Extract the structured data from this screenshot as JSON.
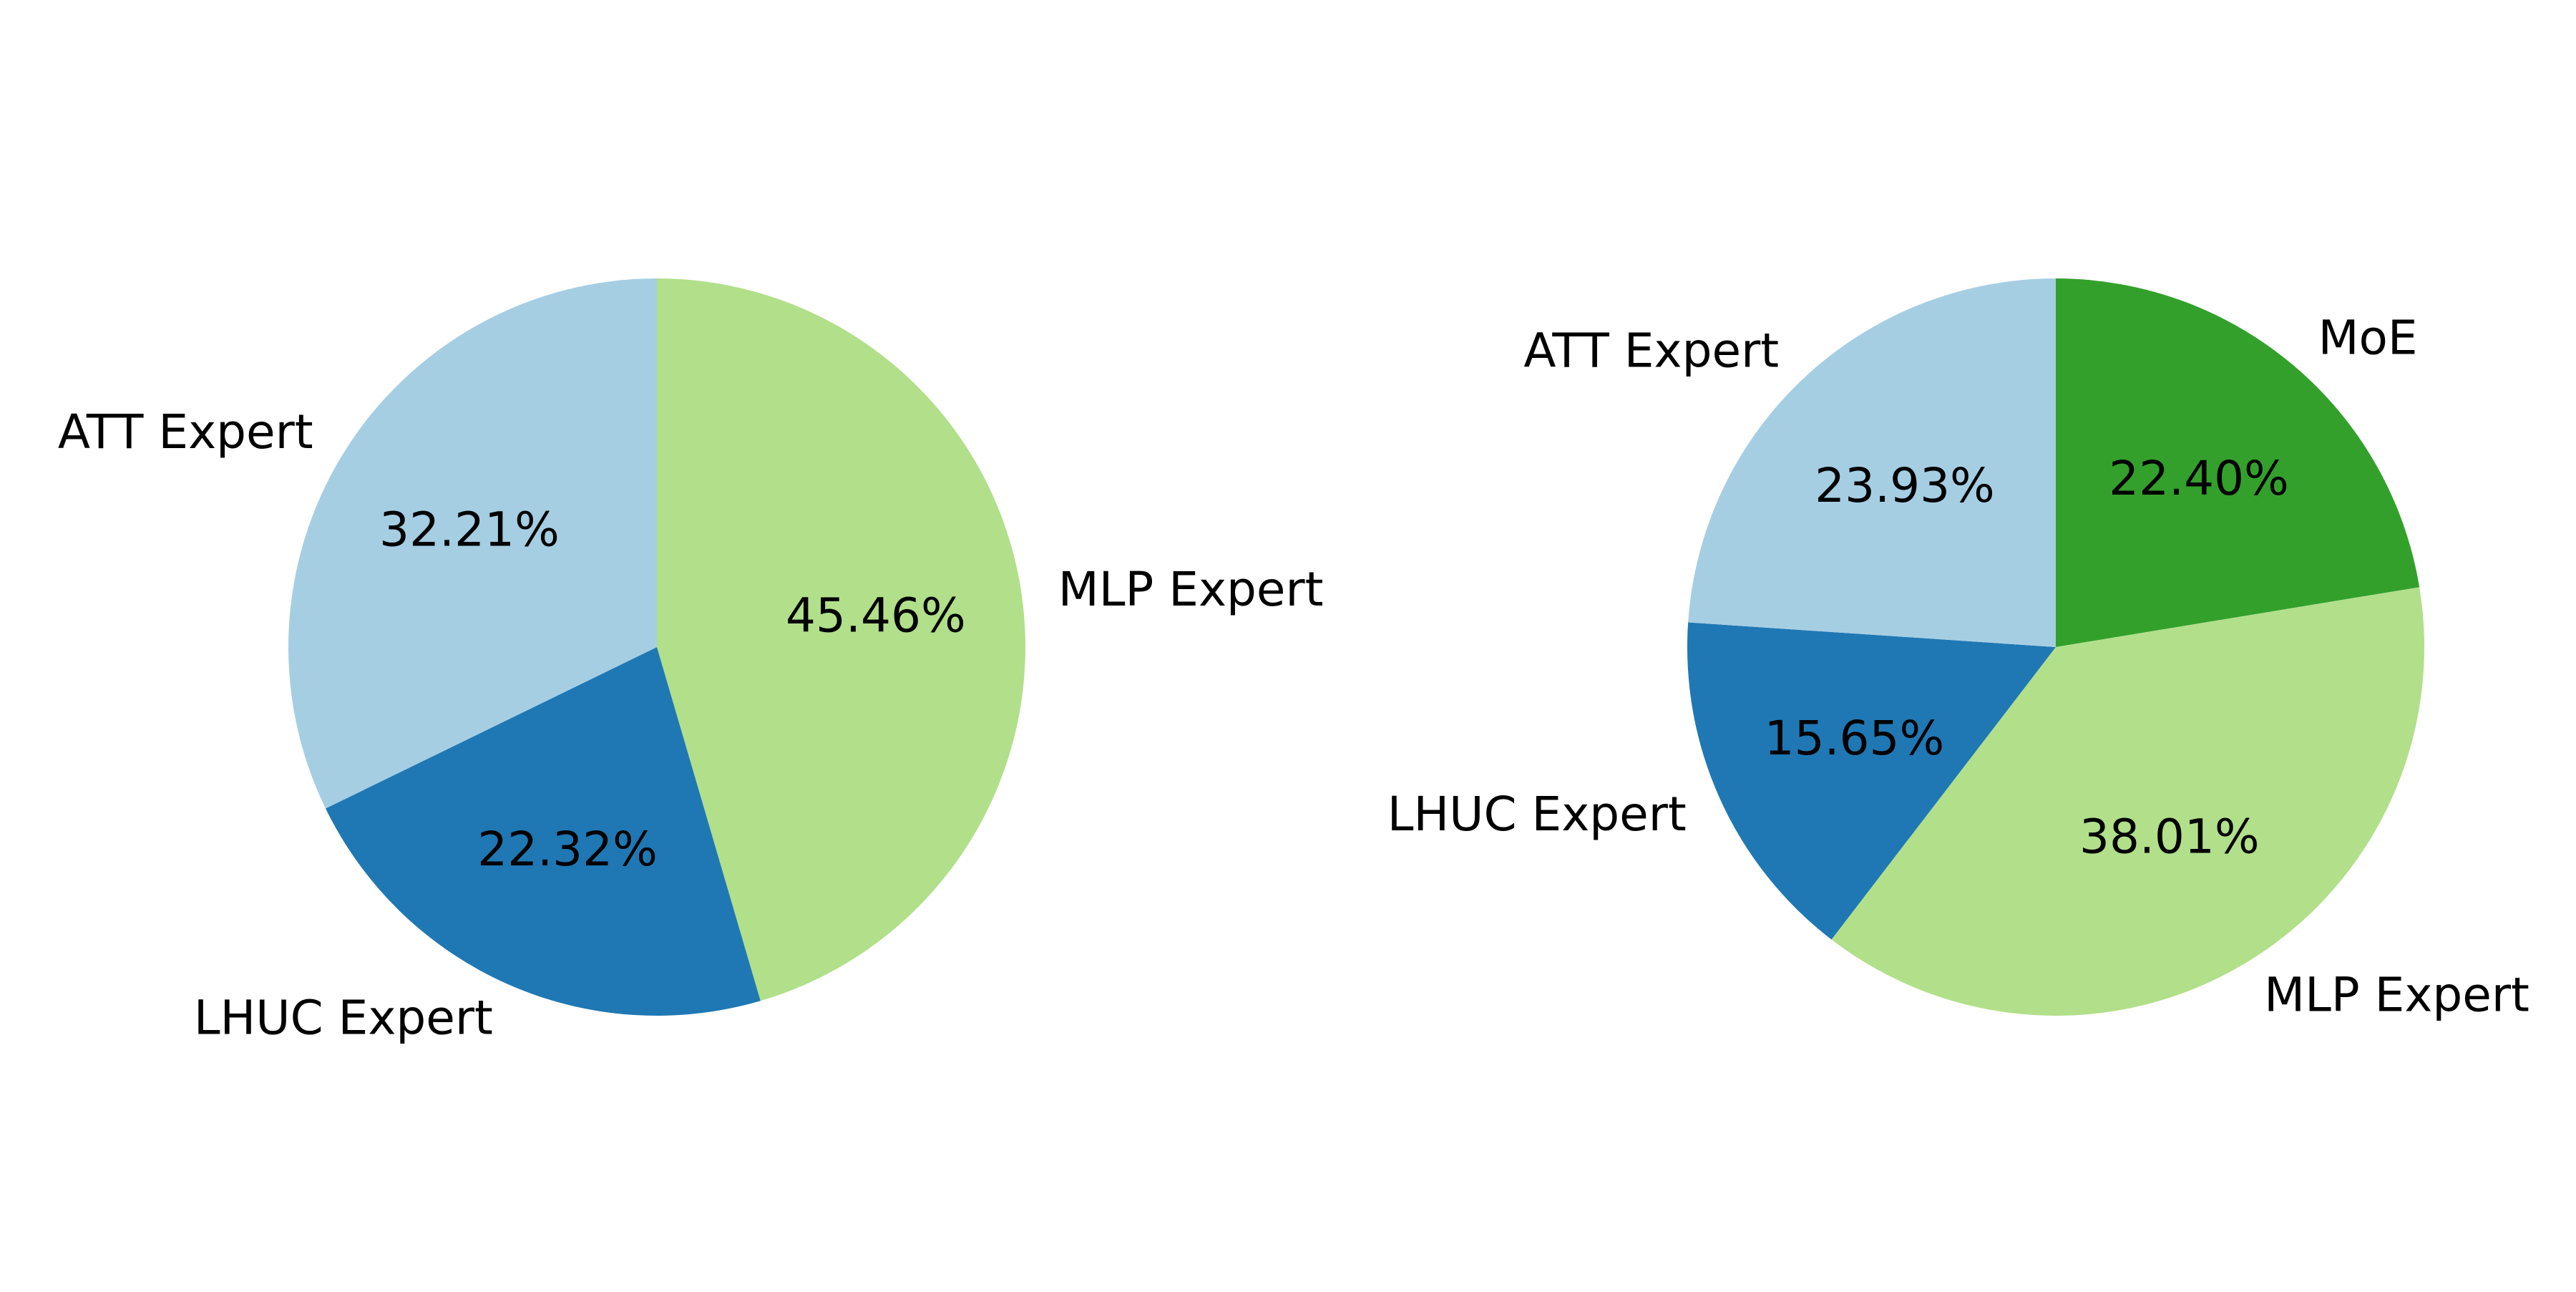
{
  "chart_data": [
    {
      "type": "pie",
      "start_angle_deg": 90,
      "direction": "clockwise",
      "slices": [
        {
          "label": "MLP Expert",
          "value": 45.46,
          "pct_label": "45.46%",
          "color": "#b2df8a"
        },
        {
          "label": "LHUC Expert",
          "value": 22.32,
          "pct_label": "22.32%",
          "color": "#1f78b4"
        },
        {
          "label": "ATT Expert",
          "value": 32.21,
          "pct_label": "32.21%",
          "color": "#a6cee3"
        }
      ]
    },
    {
      "type": "pie",
      "start_angle_deg": 90,
      "direction": "clockwise",
      "slices": [
        {
          "label": "MoE",
          "value": 22.4,
          "pct_label": "22.40%",
          "color": "#33a02c"
        },
        {
          "label": "MLP Expert",
          "value": 38.01,
          "pct_label": "38.01%",
          "color": "#b2df8a"
        },
        {
          "label": "LHUC Expert",
          "value": 15.65,
          "pct_label": "15.65%",
          "color": "#1f78b4"
        },
        {
          "label": "ATT Expert",
          "value": 23.93,
          "pct_label": "23.93%",
          "color": "#a6cee3"
        }
      ]
    }
  ]
}
